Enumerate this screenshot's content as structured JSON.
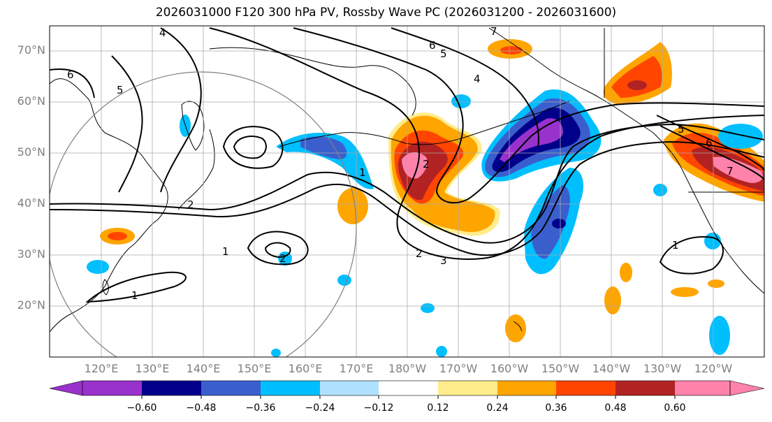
{
  "title": "2026031000 F120 300 hPa PV, Rossby Wave PC (2026031200 - 2026031600)",
  "lat_labels": [
    {
      "text": "70°N",
      "deg": 70
    },
    {
      "text": "60°N",
      "deg": 60
    },
    {
      "text": "50°N",
      "deg": 50
    },
    {
      "text": "40°N",
      "deg": 40
    },
    {
      "text": "30°N",
      "deg": 30
    },
    {
      "text": "20°N",
      "deg": 20
    }
  ],
  "lon_labels": [
    "120°E",
    "130°E",
    "140°E",
    "150°E",
    "160°E",
    "170°E",
    "180°W",
    "170°W",
    "160°W",
    "150°W",
    "140°W",
    "130°W",
    "120°W"
  ],
  "colorbar": {
    "colors": [
      "#9932cc",
      "#00008b",
      "#3a5fcd",
      "#00bfff",
      "#b0e2ff",
      "#ffffff",
      "#ffec8b",
      "#ffa500",
      "#ff4500",
      "#b22222",
      "#ff82ab"
    ],
    "ticks": [
      "−0.60",
      "−0.48",
      "−0.36",
      "−0.24",
      "−0.12",
      "0.12",
      "0.24",
      "0.36",
      "0.48",
      "0.60"
    ]
  },
  "contour_labels": [
    "4",
    "5",
    "6",
    "7",
    "6",
    "5",
    "4",
    "2",
    "1",
    "2",
    "3",
    "2",
    "1",
    "2",
    "5",
    "6",
    "7",
    "1",
    "1"
  ]
}
